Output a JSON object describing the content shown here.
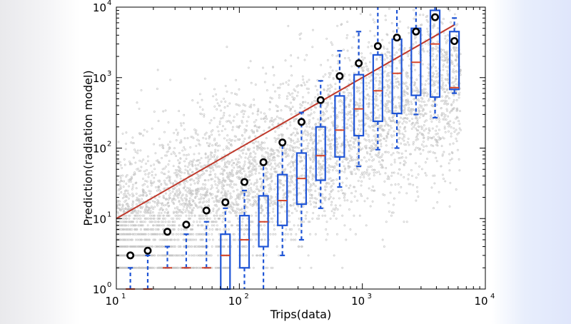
{
  "chart_data": {
    "type": "scatter",
    "title": "",
    "xlabel": "Trips(data)",
    "ylabel": "Prediction(radiation model)",
    "xscale": "log",
    "yscale": "log",
    "xlim": [
      10,
      10000
    ],
    "ylim": [
      1,
      10000
    ],
    "x_ticks": [
      {
        "base": "10",
        "exp": "1"
      },
      {
        "base": "10",
        "exp": "2"
      },
      {
        "base": "10",
        "exp": "3"
      },
      {
        "base": "10",
        "exp": "4"
      }
    ],
    "y_ticks": [
      {
        "base": "10",
        "exp": "0"
      },
      {
        "base": "10",
        "exp": "1"
      },
      {
        "base": "10",
        "exp": "2"
      },
      {
        "base": "10",
        "exp": "3"
      },
      {
        "base": "10",
        "exp": "4"
      }
    ],
    "grid": false,
    "legend": "none",
    "colors": {
      "scatter": "#bdbdbd",
      "box": "#1f55d6",
      "median": "#d6452a",
      "identity_line": "#c0392b",
      "mean_marker": "#000000"
    },
    "identity_line": {
      "x": [
        10,
        5600
      ],
      "y": [
        10,
        5600
      ]
    },
    "scatter_note": "dense cloud of individual origin-destination pairs (light grey points)",
    "bins": [
      {
        "x": 13,
        "mean": 3.0,
        "whisker_low": 1,
        "q1": 1,
        "median": 1,
        "q3": 1,
        "whisker_high": 2
      },
      {
        "x": 18,
        "mean": 3.5,
        "whisker_low": 1,
        "q1": 1,
        "median": 1,
        "q3": 1,
        "whisker_high": 3
      },
      {
        "x": 26,
        "mean": 6.5,
        "whisker_low": 2,
        "q1": 2,
        "median": 2,
        "q3": 2,
        "whisker_high": 4
      },
      {
        "x": 37,
        "mean": 8.2,
        "whisker_low": 2,
        "q1": 2,
        "median": 2,
        "q3": 2,
        "whisker_high": 6
      },
      {
        "x": 54,
        "mean": 13,
        "whisker_low": 2,
        "q1": 2,
        "median": 2,
        "q3": 2,
        "whisker_high": 9
      },
      {
        "x": 77,
        "mean": 17,
        "whisker_low": 1,
        "q1": 1,
        "median": 3,
        "q3": 6,
        "whisker_high": 14
      },
      {
        "x": 110,
        "mean": 33,
        "whisker_low": 1,
        "q1": 2,
        "median": 5,
        "q3": 11,
        "whisker_high": 25
      },
      {
        "x": 157,
        "mean": 63,
        "whisker_low": 1,
        "q1": 4,
        "median": 9,
        "q3": 21,
        "whisker_high": 60
      },
      {
        "x": 224,
        "mean": 120,
        "whisker_low": 3,
        "q1": 8,
        "median": 18,
        "q3": 42,
        "whisker_high": 115
      },
      {
        "x": 320,
        "mean": 235,
        "whisker_low": 5,
        "q1": 16,
        "median": 37,
        "q3": 85,
        "whisker_high": 320
      },
      {
        "x": 458,
        "mean": 480,
        "whisker_low": 14,
        "q1": 35,
        "median": 78,
        "q3": 200,
        "whisker_high": 900
      },
      {
        "x": 654,
        "mean": 1050,
        "whisker_low": 28,
        "q1": 75,
        "median": 180,
        "q3": 550,
        "whisker_high": 2400
      },
      {
        "x": 935,
        "mean": 1600,
        "whisker_low": 55,
        "q1": 150,
        "median": 360,
        "q3": 1100,
        "whisker_high": 4500
      },
      {
        "x": 1336,
        "mean": 2800,
        "whisker_low": 95,
        "q1": 240,
        "median": 650,
        "q3": 2100,
        "whisker_high": 10000
      },
      {
        "x": 1910,
        "mean": 3700,
        "whisker_low": 100,
        "q1": 310,
        "median": 1150,
        "q3": 3500,
        "whisker_high": 10000
      },
      {
        "x": 2730,
        "mean": 4500,
        "whisker_low": 300,
        "q1": 560,
        "median": 1650,
        "q3": 5000,
        "whisker_high": 10000
      },
      {
        "x": 3900,
        "mean": 7200,
        "whisker_low": 270,
        "q1": 530,
        "median": 3000,
        "q3": 9000,
        "whisker_high": 10000
      },
      {
        "x": 5600,
        "mean": 3300,
        "whisker_low": 600,
        "q1": 680,
        "median": 720,
        "q3": 4500,
        "whisker_high": 7000
      }
    ]
  }
}
